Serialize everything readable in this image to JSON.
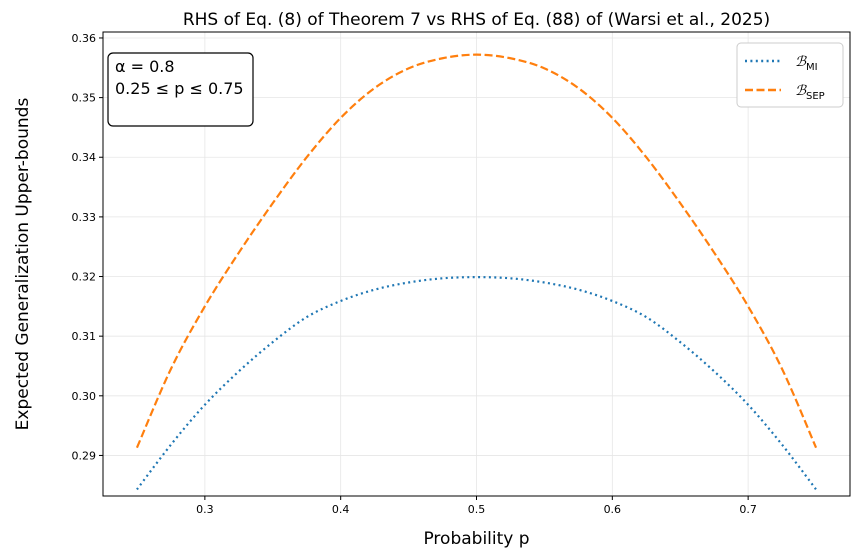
{
  "chart_data": {
    "type": "line",
    "title": "RHS of Eq. (8) of Theorem 7 vs RHS of Eq. (88) of (Warsi et al., 2025)",
    "xlabel": "Probability p",
    "ylabel": "Expected Generalization Upper-bounds",
    "xlim": [
      0.225,
      0.775
    ],
    "ylim": [
      0.2832,
      0.361
    ],
    "xticks": [
      0.3,
      0.4,
      0.5,
      0.6,
      0.7
    ],
    "xtick_labels": [
      "0.3",
      "0.4",
      "0.5",
      "0.6",
      "0.7"
    ],
    "yticks": [
      0.29,
      0.3,
      0.31,
      0.32,
      0.33,
      0.34,
      0.35,
      0.36
    ],
    "ytick_labels": [
      "0.29",
      "0.30",
      "0.31",
      "0.32",
      "0.33",
      "0.34",
      "0.35",
      "0.36"
    ],
    "grid": true,
    "legend_position": "top-right",
    "annotation": {
      "line1": "α = 0.8",
      "line2": "0.25 ≤ p ≤ 0.75",
      "position": "top-left"
    },
    "series": [
      {
        "name": "B_MI",
        "legend_main": "ℬ",
        "legend_sub": "MI",
        "color": "#1f77b4",
        "style": "dotted",
        "x": [
          0.25,
          0.275,
          0.3,
          0.325,
          0.35,
          0.375,
          0.4,
          0.425,
          0.45,
          0.475,
          0.5,
          0.525,
          0.55,
          0.575,
          0.6,
          0.625,
          0.65,
          0.675,
          0.7,
          0.725,
          0.75
        ],
        "y": [
          0.2843,
          0.2918,
          0.2985,
          0.3041,
          0.309,
          0.3132,
          0.3159,
          0.3178,
          0.319,
          0.3197,
          0.3199,
          0.3197,
          0.319,
          0.3178,
          0.3159,
          0.3132,
          0.309,
          0.3041,
          0.2985,
          0.2918,
          0.2843
        ]
      },
      {
        "name": "B_SEP",
        "legend_main": "ℬ",
        "legend_sub": "SEP",
        "color": "#ff7f0e",
        "style": "dashed",
        "x": [
          0.25,
          0.275,
          0.3,
          0.325,
          0.35,
          0.375,
          0.4,
          0.425,
          0.45,
          0.475,
          0.5,
          0.525,
          0.55,
          0.575,
          0.6,
          0.625,
          0.65,
          0.675,
          0.7,
          0.725,
          0.75
        ],
        "y": [
          0.2913,
          0.3045,
          0.315,
          0.324,
          0.3323,
          0.34,
          0.3466,
          0.3516,
          0.3549,
          0.3566,
          0.3572,
          0.3566,
          0.3549,
          0.3516,
          0.3466,
          0.34,
          0.3323,
          0.324,
          0.315,
          0.3045,
          0.2913
        ]
      }
    ]
  }
}
